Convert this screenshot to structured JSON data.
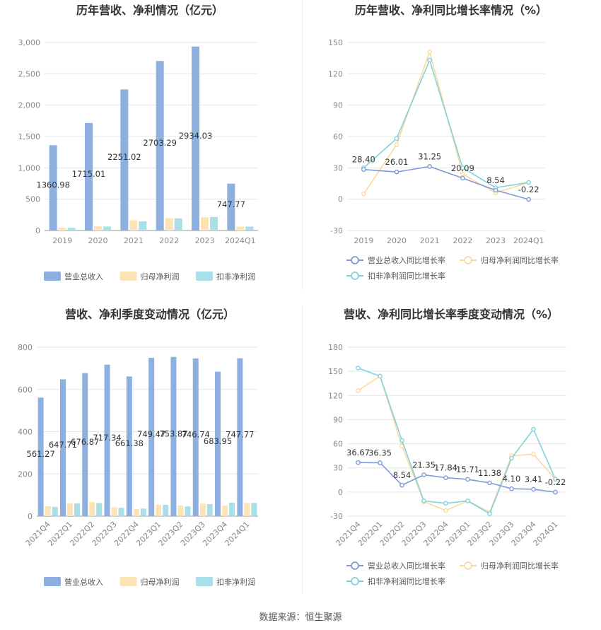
{
  "charts": [
    {
      "type": "bar",
      "title": "历年营收、净利情况（亿元）",
      "categories": [
        "2019",
        "2020",
        "2021",
        "2022",
        "2023",
        "2024Q1"
      ],
      "ylim": [
        0,
        3000
      ],
      "yticks": [
        0,
        500,
        1000,
        1500,
        2000,
        2500,
        3000
      ],
      "ytick_labels": [
        "0",
        "500",
        "1,000",
        "1,500",
        "2,000",
        "2,500",
        "3,000"
      ],
      "series": [
        {
          "name": "营业总收入",
          "color": "#8eb0de",
          "values": [
            1360.98,
            1715.01,
            2251.02,
            2703.29,
            2934.03,
            747.77
          ],
          "labels": [
            "1360.98",
            "1715.01",
            "2251.02",
            "2703.29",
            "2934.03",
            "747.77"
          ]
        },
        {
          "name": "归母净利润",
          "color": "#fde4b4",
          "values": [
            45,
            66,
            162,
            198,
            212,
            63
          ]
        },
        {
          "name": "扣非净利润",
          "color": "#a9e0e8",
          "values": [
            43,
            64,
            145,
            193,
            216,
            63
          ]
        }
      ]
    },
    {
      "type": "line",
      "title": "历年营收、净利同比增长率情况（%）",
      "categories": [
        "2019",
        "2020",
        "2021",
        "2022",
        "2023",
        "2024Q1"
      ],
      "ylim": [
        -30,
        150
      ],
      "yticks": [
        -30,
        0,
        30,
        60,
        90,
        120,
        150
      ],
      "ytick_labels": [
        "-30",
        "0",
        "30",
        "60",
        "90",
        "120",
        "150"
      ],
      "series": [
        {
          "name": "营业总收入同比增长率",
          "color": "#7f9bd4",
          "values": [
            28.4,
            26.01,
            31.25,
            20.09,
            8.54,
            -0.22
          ],
          "labels": [
            "28.40",
            "26.01",
            "31.25",
            "20.09",
            "8.54",
            "-0.22"
          ]
        },
        {
          "name": "归母净利润同比增长率",
          "color": "#fdd9a0",
          "values": [
            5,
            52,
            141,
            24,
            6,
            16
          ]
        },
        {
          "name": "扣非净利润同比增长率",
          "color": "#7fd3da",
          "values": [
            30,
            58,
            133,
            30,
            11,
            16
          ]
        }
      ]
    },
    {
      "type": "bar",
      "title": "营收、净利季度变动情况（亿元）",
      "categories": [
        "2021Q4",
        "2022Q1",
        "2022Q2",
        "2022Q3",
        "2022Q4",
        "2023Q1",
        "2023Q2",
        "2023Q3",
        "2023Q4",
        "2024Q1"
      ],
      "ylim": [
        0,
        800
      ],
      "yticks": [
        0,
        200,
        400,
        600,
        800
      ],
      "ytick_labels": [
        "0",
        "200",
        "400",
        "600",
        "800"
      ],
      "series": [
        {
          "name": "营业总收入",
          "color": "#8eb0de",
          "values": [
            561.27,
            647.71,
            676.87,
            717.34,
            661.38,
            749.47,
            753.87,
            746.74,
            683.95,
            747.77
          ],
          "labels": [
            "561.27",
            "647.71",
            "676.87",
            "717.34",
            "661.38",
            "749.47",
            "753.87",
            "746.74",
            "683.95",
            "747.77"
          ]
        },
        {
          "name": "归母净利润",
          "color": "#fde4b4",
          "values": [
            47,
            61,
            67,
            42,
            33,
            55,
            50,
            59,
            50,
            63
          ]
        },
        {
          "name": "扣非净利润",
          "color": "#a9e0e8",
          "values": [
            44,
            60,
            62,
            40,
            36,
            54,
            46,
            57,
            64,
            63
          ]
        }
      ]
    },
    {
      "type": "line",
      "title": "营收、净利同比增长率季度变动情况（%）",
      "categories": [
        "2021Q4",
        "2022Q1",
        "2022Q2",
        "2022Q3",
        "2022Q4",
        "2023Q1",
        "2023Q2",
        "2023Q3",
        "2023Q4",
        "2024Q1"
      ],
      "ylim": [
        -30,
        180
      ],
      "yticks": [
        -30,
        0,
        30,
        60,
        90,
        120,
        150,
        180
      ],
      "ytick_labels": [
        "-30",
        "0",
        "30",
        "60",
        "90",
        "120",
        "150",
        "180"
      ],
      "series": [
        {
          "name": "营业总收入同比增长率",
          "color": "#7f9bd4",
          "values": [
            36.67,
            36.35,
            8.54,
            21.35,
            17.84,
            15.71,
            11.38,
            4.1,
            3.41,
            -0.22
          ],
          "labels": [
            "36.67",
            "36.35",
            "8.54",
            "21.35",
            "17.84",
            "15.71",
            "11.38",
            "4.10",
            "3.41",
            "-0.22"
          ]
        },
        {
          "name": "归母净利润同比增长率",
          "color": "#fdd9a0",
          "values": [
            126,
            144,
            57,
            -12,
            -23,
            -11,
            -25,
            45,
            47,
            16
          ]
        },
        {
          "name": "扣非净利润同比增长率",
          "color": "#7fd3da",
          "values": [
            154,
            144,
            64,
            -11,
            -14,
            -11,
            -27,
            42,
            78,
            16
          ]
        }
      ]
    }
  ],
  "source": "数据来源：恒生聚源"
}
